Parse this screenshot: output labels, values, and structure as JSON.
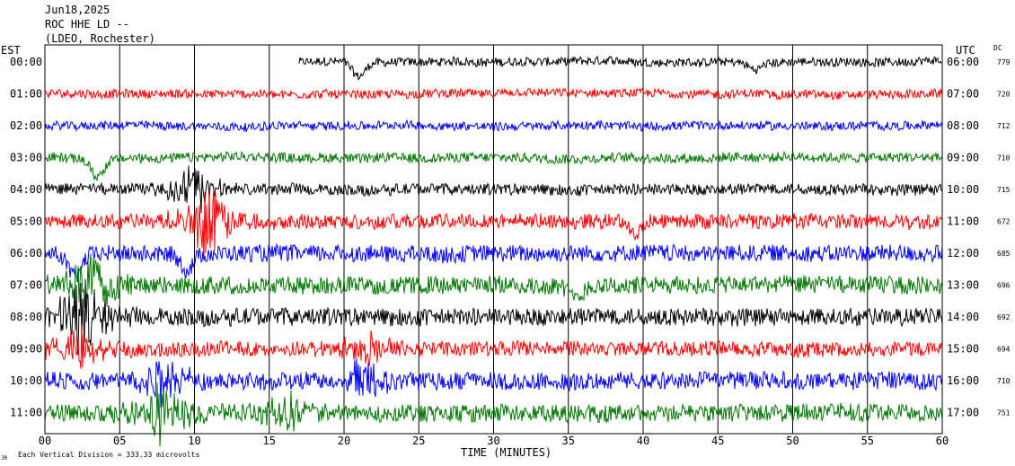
{
  "header": {
    "date": "Jun18,2025",
    "station": "ROC HHE LD --",
    "network": "(LDEO, Rochester)"
  },
  "axis": {
    "left_title": "EST",
    "right_title": "UTC",
    "dc_title": "DC",
    "x_title": "TIME (MINUTES)",
    "footnote": "Each Vertical Division = 333.33 microvolts",
    "footnote_mark": "JR"
  },
  "chart_data": {
    "type": "line",
    "title": "ROC HHE LD --",
    "xlabel": "TIME (MINUTES)",
    "ylabel": "",
    "xlim": [
      0,
      60
    ],
    "x_ticks": [
      "00",
      "05",
      "10",
      "15",
      "20",
      "25",
      "30",
      "35",
      "40",
      "45",
      "50",
      "55",
      "60"
    ],
    "grid": true,
    "division_microvolts": 333.33,
    "trace_colors": [
      "#000000",
      "#ff0000",
      "#0000ff",
      "#007700"
    ],
    "traces": [
      {
        "est": "00:00",
        "utc": "06:00",
        "dc": "779",
        "start_min": 17,
        "amplitude": 0.25,
        "events": [
          {
            "t": 21,
            "size": 0.9,
            "type": "dip"
          },
          {
            "t": 47.5,
            "size": 0.7,
            "type": "bump"
          }
        ]
      },
      {
        "est": "01:00",
        "utc": "07:00",
        "dc": "720",
        "start_min": 0,
        "amplitude": 0.25,
        "events": []
      },
      {
        "est": "02:00",
        "utc": "08:00",
        "dc": "712",
        "start_min": 0,
        "amplitude": 0.25,
        "events": []
      },
      {
        "est": "03:00",
        "utc": "09:00",
        "dc": "710",
        "start_min": 0,
        "amplitude": 0.28,
        "events": [
          {
            "t": 3.5,
            "size": 1.1,
            "type": "dip"
          }
        ]
      },
      {
        "est": "04:00",
        "utc": "10:00",
        "dc": "715",
        "start_min": 0,
        "amplitude": 0.32,
        "events": [
          {
            "t": 10,
            "size": 1.5,
            "type": "burst"
          }
        ]
      },
      {
        "est": "05:00",
        "utc": "11:00",
        "dc": "672",
        "start_min": 0,
        "amplitude": 0.42,
        "events": [
          {
            "t": 11,
            "size": 2.4,
            "type": "burst"
          },
          {
            "t": 39.5,
            "size": 0.8,
            "type": "dip"
          }
        ]
      },
      {
        "est": "06:00",
        "utc": "12:00",
        "dc": "685",
        "start_min": 0,
        "amplitude": 0.48,
        "events": [
          {
            "t": 2,
            "size": 1.5,
            "type": "dip"
          },
          {
            "t": 9.5,
            "size": 1.0,
            "type": "dip"
          }
        ]
      },
      {
        "est": "07:00",
        "utc": "13:00",
        "dc": "696",
        "start_min": 0,
        "amplitude": 0.5,
        "events": [
          {
            "t": 3,
            "size": 2.2,
            "type": "burst"
          },
          {
            "t": 35.5,
            "size": 1.2,
            "type": "bump"
          }
        ]
      },
      {
        "est": "08:00",
        "utc": "14:00",
        "dc": "692",
        "start_min": 0,
        "amplitude": 0.5,
        "events": [
          {
            "t": 2.5,
            "size": 2.6,
            "type": "burst"
          }
        ]
      },
      {
        "est": "09:00",
        "utc": "15:00",
        "dc": "694",
        "start_min": 0,
        "amplitude": 0.42,
        "events": [
          {
            "t": 2.2,
            "size": 1.4,
            "type": "burst"
          },
          {
            "t": 21.5,
            "size": 1.0,
            "type": "burst"
          }
        ]
      },
      {
        "est": "10:00",
        "utc": "16:00",
        "dc": "710",
        "start_min": 0,
        "amplitude": 0.5,
        "events": [
          {
            "t": 8,
            "size": 1.4,
            "type": "burst"
          },
          {
            "t": 21,
            "size": 1.3,
            "type": "burst"
          }
        ]
      },
      {
        "est": "11:00",
        "utc": "17:00",
        "dc": "751",
        "start_min": 0,
        "amplitude": 0.5,
        "events": [
          {
            "t": 7.8,
            "size": 2.0,
            "type": "burst"
          },
          {
            "t": 16,
            "size": 1.3,
            "type": "burst"
          }
        ]
      }
    ]
  }
}
